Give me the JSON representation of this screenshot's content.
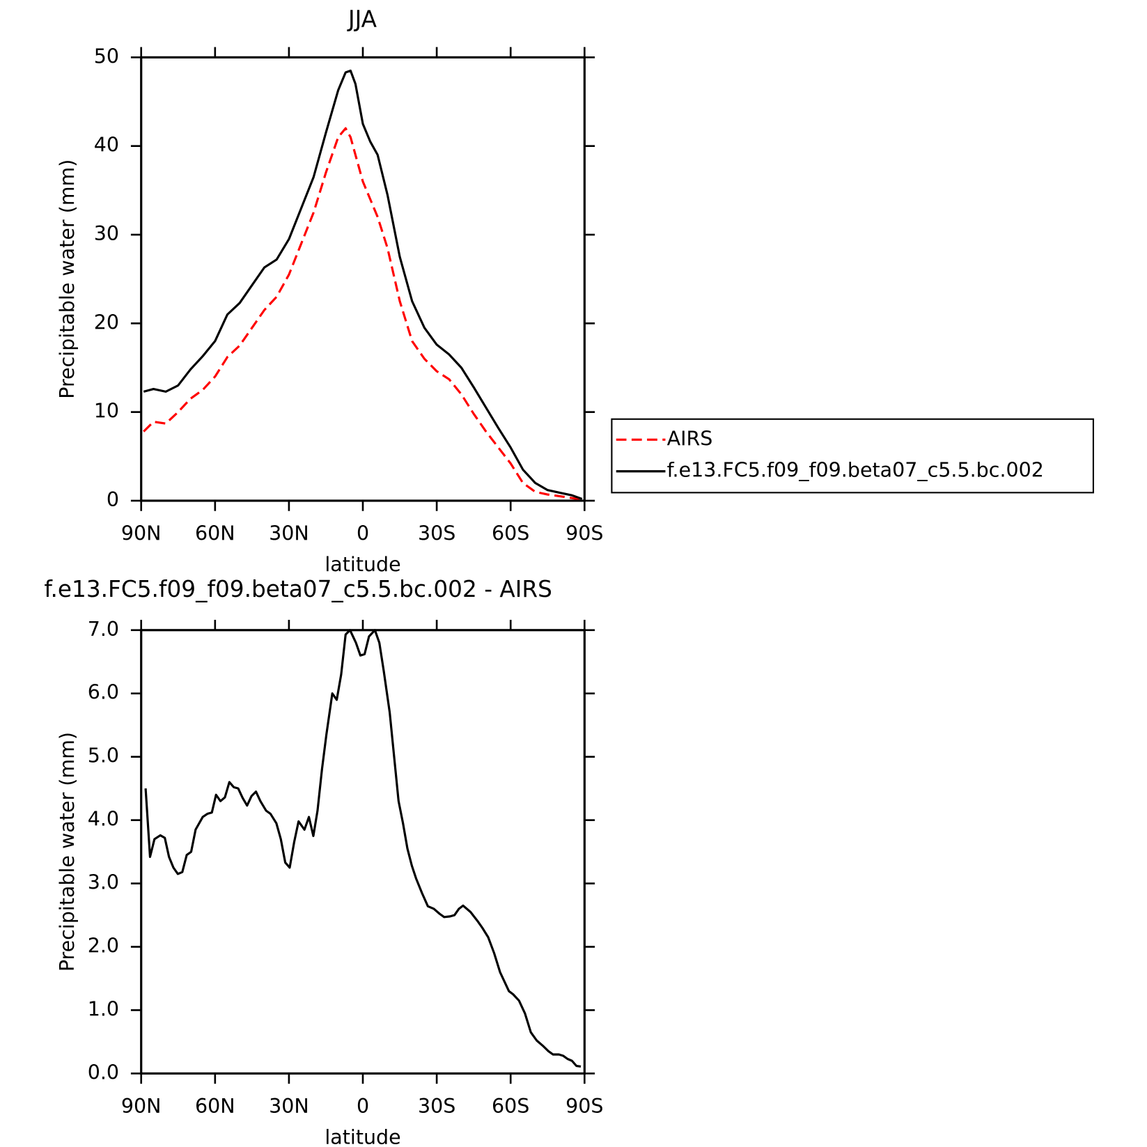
{
  "chart_data": [
    {
      "type": "line",
      "title": "JJA",
      "x_label": "latitude",
      "y_label": "Precipitable water (mm)",
      "x": [
        89,
        85,
        80,
        75,
        70,
        65,
        60,
        55,
        50,
        45,
        40,
        35,
        30,
        25,
        20,
        15,
        10,
        7,
        5,
        3,
        0,
        -3,
        -6,
        -10,
        -15,
        -20,
        -25,
        -30,
        -35,
        -40,
        -45,
        -50,
        -55,
        -60,
        -65,
        -70,
        -75,
        -80,
        -85,
        -89
      ],
      "series": [
        {
          "name": "AIRS",
          "color": "#ff0000",
          "line_style": "dashed",
          "values": [
            7.8,
            8.9,
            8.7,
            10.0,
            11.5,
            12.5,
            14.0,
            16.2,
            17.5,
            19.5,
            21.5,
            23.0,
            25.5,
            29.0,
            32.5,
            37.0,
            41.0,
            42.0,
            41.0,
            39.0,
            36.0,
            34.0,
            32.0,
            28.5,
            22.5,
            18.0,
            16.0,
            14.6,
            13.7,
            12.0,
            9.8,
            7.8,
            6.0,
            4.2,
            2.0,
            1.0,
            0.7,
            0.5,
            0.3,
            0.1
          ]
        },
        {
          "name": "f.e13.FC5.f09_f09.beta07_c5.5.bc.002",
          "color": "#000000",
          "line_style": "solid",
          "values": [
            12.3,
            12.6,
            12.3,
            13.0,
            14.8,
            16.3,
            18.0,
            21.0,
            22.3,
            24.3,
            26.3,
            27.2,
            29.5,
            33.0,
            36.5,
            41.5,
            46.3,
            48.3,
            48.5,
            47.0,
            42.5,
            40.5,
            39.0,
            34.5,
            27.5,
            22.5,
            19.5,
            17.6,
            16.5,
            15.0,
            12.8,
            10.5,
            8.2,
            6.0,
            3.5,
            2.0,
            1.2,
            0.9,
            0.6,
            0.2
          ]
        }
      ],
      "xlim": [
        90,
        -90
      ],
      "xticks": [
        {
          "value": 90,
          "label": "90N"
        },
        {
          "value": 60,
          "label": "60N"
        },
        {
          "value": 30,
          "label": "30N"
        },
        0,
        {
          "value": -30,
          "label": "30S"
        },
        {
          "value": -60,
          "label": "60S"
        },
        {
          "value": -90,
          "label": "90S"
        }
      ],
      "ylim": [
        0,
        50
      ],
      "yticks": [
        0,
        10,
        20,
        30,
        40,
        50
      ],
      "legend": "right"
    },
    {
      "type": "line",
      "title": "f.e13.FC5.f09_f09.beta07_c5.5.bc.002 - AIRS",
      "x_label": "latitude",
      "y_label": "Precipitable water (mm)",
      "x": [
        88.2,
        86.4,
        84.6,
        82.2,
        80.4,
        78.7,
        76.9,
        75.1,
        73.3,
        71.5,
        69.7,
        67.9,
        65,
        63.1,
        61.3,
        59.6,
        57.8,
        56,
        54.2,
        52.4,
        50.6,
        48.8,
        47,
        45.2,
        43.4,
        41.6,
        39.3,
        37.5,
        35.1,
        33.3,
        31.5,
        29.7,
        27.9,
        26.1,
        23.7,
        21.9,
        20.1,
        18.4,
        16.6,
        14.8,
        12.4,
        10.6,
        8.8,
        7,
        5.2,
        2.8,
        1,
        -0.7,
        -2.5,
        -4.9,
        -6.7,
        -8.5,
        -10.9,
        -12.7,
        -14.5,
        -16.3,
        -18.1,
        -19.9,
        -21.6,
        -24,
        -26.4,
        -28.8,
        -31.2,
        -33,
        -35.4,
        -37.2,
        -39,
        -40.7,
        -43.7,
        -46.7,
        -48.5,
        -50.9,
        -53.3,
        -55.7,
        -57.5,
        -59.3,
        -61,
        -63.4,
        -65.8,
        -68.2,
        -70.6,
        -73,
        -75.4,
        -77.2,
        -79.6,
        -81.3,
        -83.1,
        -84.9,
        -86.7,
        -88.5
      ],
      "series": [
        {
          "color": "#000000",
          "line_style": "solid",
          "values": [
            4.5,
            3.42,
            3.7,
            3.76,
            3.72,
            3.42,
            3.25,
            3.15,
            3.18,
            3.45,
            3.5,
            3.85,
            4.05,
            4.1,
            4.12,
            4.4,
            4.3,
            4.36,
            4.6,
            4.52,
            4.5,
            4.35,
            4.23,
            4.38,
            4.45,
            4.3,
            4.15,
            4.1,
            3.95,
            3.7,
            3.33,
            3.25,
            3.65,
            3.98,
            3.85,
            4.05,
            3.75,
            4.15,
            4.8,
            5.35,
            6.0,
            5.9,
            6.3,
            6.93,
            7.0,
            6.8,
            6.6,
            6.62,
            6.9,
            7.0,
            6.8,
            6.35,
            5.7,
            5.0,
            4.3,
            3.95,
            3.55,
            3.28,
            3.08,
            2.85,
            2.64,
            2.6,
            2.52,
            2.47,
            2.48,
            2.5,
            2.6,
            2.65,
            2.55,
            2.4,
            2.3,
            2.15,
            1.9,
            1.6,
            1.45,
            1.3,
            1.25,
            1.15,
            0.95,
            0.65,
            0.52,
            0.44,
            0.35,
            0.3,
            0.3,
            0.28,
            0.23,
            0.2,
            0.12,
            0.11
          ]
        }
      ],
      "xlim": [
        90,
        -90
      ],
      "xticks": [
        {
          "value": 90,
          "label": "90N"
        },
        {
          "value": 60,
          "label": "60N"
        },
        {
          "value": 30,
          "label": "30N"
        },
        0,
        {
          "value": -30,
          "label": "30S"
        },
        {
          "value": -60,
          "label": "60S"
        },
        {
          "value": -90,
          "label": "90S"
        }
      ],
      "ylim": [
        0,
        7
      ],
      "yticks": [
        {
          "value": 0,
          "label": "0.0"
        },
        {
          "value": 1,
          "label": "1.0"
        },
        {
          "value": 2,
          "label": "2.0"
        },
        {
          "value": 3,
          "label": "3.0"
        },
        {
          "value": 4,
          "label": "4.0"
        },
        {
          "value": 5,
          "label": "5.0"
        },
        {
          "value": 6,
          "label": "6.0"
        },
        {
          "value": 7,
          "label": "7.0"
        }
      ]
    }
  ]
}
